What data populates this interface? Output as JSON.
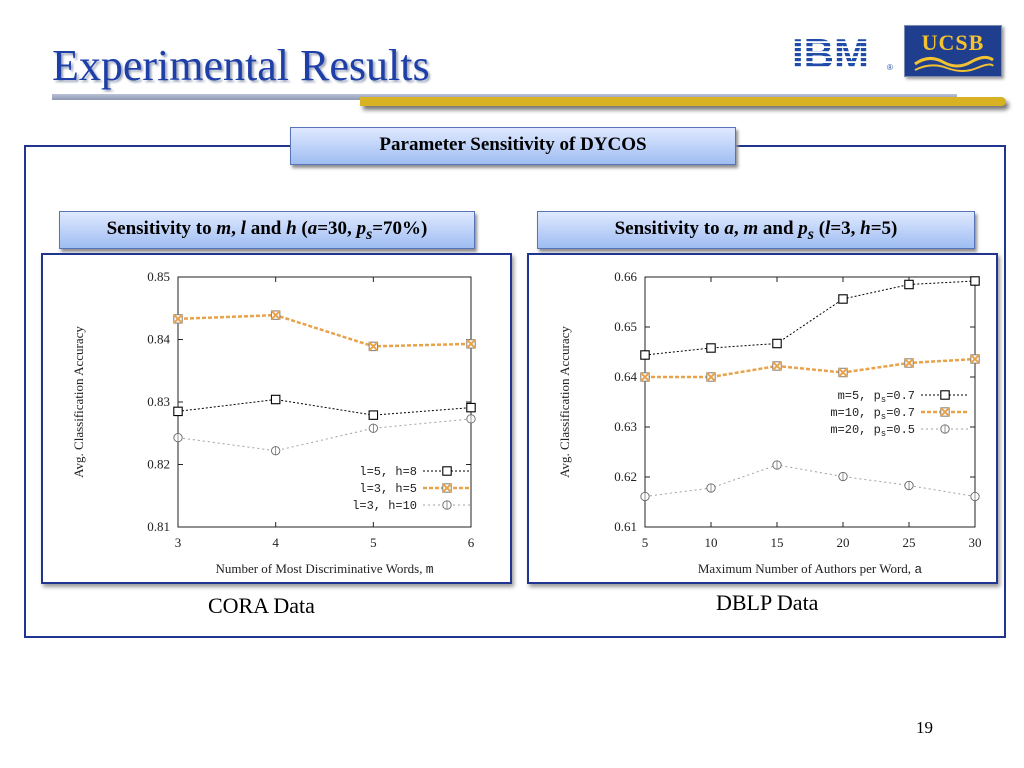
{
  "slide": {
    "title": "Experimental Results",
    "page_number": "19",
    "logos": {
      "ibm": "IBM",
      "ucsb": "UCSB"
    },
    "main_header": "Parameter Sensitivity of DYCOS",
    "left_header": {
      "p1": "Sensitivity to ",
      "m": "m",
      "c1": ", ",
      "l": "l",
      "c2": "  and ",
      "h": "h",
      "c3": " (",
      "a": "a",
      "c4": "=30, ",
      "p": "p",
      "s": "s",
      "c5": "=70%)"
    },
    "right_header": {
      "p1": "Sensitivity to ",
      "a": "a",
      "c1": ", ",
      "m": "m",
      "c2": " and ",
      "p": "p",
      "s": "s",
      "c3": "  (",
      "l": "l",
      "c4": "=3, ",
      "h": "h",
      "c5": "=5)"
    },
    "left_caption": "CORA Data",
    "right_caption": "DBLP Data"
  },
  "chart_data": [
    {
      "type": "line",
      "x": [
        3,
        4,
        5,
        6
      ],
      "xlabel_text": "Number of Most Discriminative Words, ",
      "xlabel_var": "m",
      "ylabel": "Avg. Classification Accuracy",
      "ylim": [
        0.81,
        0.85
      ],
      "yticks": [
        "0.81",
        "0.82",
        "0.83",
        "0.84",
        "0.85"
      ],
      "xticks": [
        "3",
        "4",
        "5",
        "6"
      ],
      "legend_position": "bottom-right",
      "series": [
        {
          "name": "l=5, h=8",
          "values": [
            0.8285,
            0.8304,
            0.8279,
            0.8291
          ],
          "color": "#000000",
          "marker": "square",
          "dash": "2,2",
          "width": 1
        },
        {
          "name": "l=3, h=5",
          "values": [
            0.8433,
            0.8439,
            0.8389,
            0.8393
          ],
          "color": "#e8a24a",
          "marker": "square-x",
          "dash": "4,2",
          "width": 2.5
        },
        {
          "name": "l=3, h=10",
          "values": [
            0.8243,
            0.8222,
            0.8258,
            0.8273
          ],
          "color": "#a0a0a0",
          "marker": "circle",
          "dash": "2,3",
          "width": 1
        }
      ]
    },
    {
      "type": "line",
      "x": [
        5,
        10,
        15,
        20,
        25,
        30
      ],
      "xlabel_text": "Maximum Number of Authors per Word, ",
      "xlabel_var": "a",
      "ylabel": "Avg. Classification Accuracy",
      "ylim": [
        0.61,
        0.66
      ],
      "yticks": [
        "0.61",
        "0.62",
        "0.63",
        "0.64",
        "0.65",
        "0.66"
      ],
      "xticks": [
        "5",
        "10",
        "15",
        "20",
        "25",
        "30"
      ],
      "legend_position": "center-right",
      "series": [
        {
          "name": "m=5, p",
          "sub": "s",
          "suffix": "=0.7",
          "values": [
            0.6444,
            0.6458,
            0.6467,
            0.6556,
            0.6585,
            0.6592
          ],
          "color": "#000000",
          "marker": "square",
          "dash": "2,2",
          "width": 1
        },
        {
          "name": "m=10, p",
          "sub": "s",
          "suffix": "=0.7",
          "values": [
            0.64,
            0.64,
            0.6422,
            0.6409,
            0.6428,
            0.6436
          ],
          "color": "#e8a24a",
          "marker": "square-x",
          "dash": "4,2",
          "width": 2.5
        },
        {
          "name": "m=20, p",
          "sub": "s",
          "suffix": "=0.5",
          "values": [
            0.6161,
            0.6178,
            0.6224,
            0.6201,
            0.6183,
            0.6161
          ],
          "color": "#a0a0a0",
          "marker": "circle",
          "dash": "2,3",
          "width": 1
        }
      ]
    }
  ]
}
